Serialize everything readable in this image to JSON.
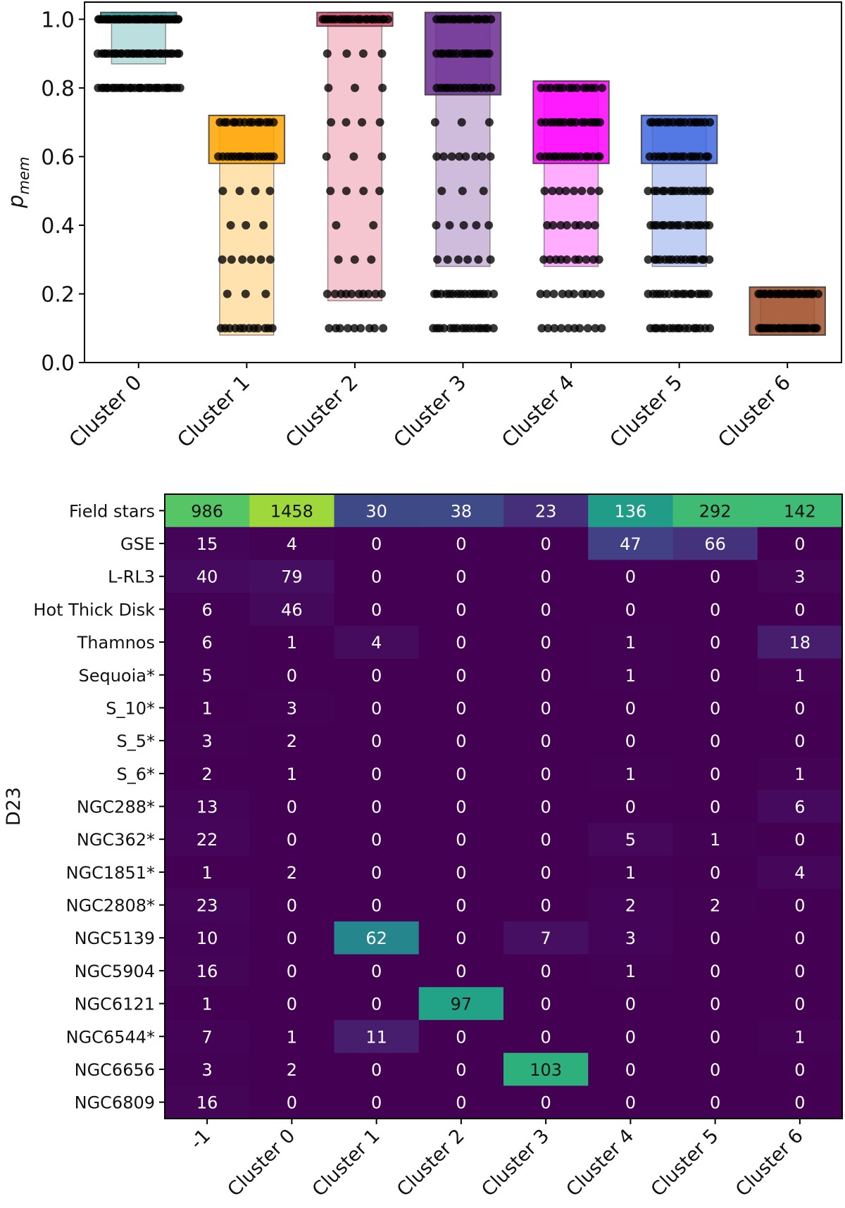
{
  "chart_data": [
    {
      "type": "box-strip",
      "ylabel": "p",
      "ylabel_sub": "mem",
      "ylim": [
        0.0,
        1.05
      ],
      "yticks": [
        0.0,
        0.2,
        0.4,
        0.6,
        0.8,
        1.0
      ],
      "ytick_labels": [
        "0.0",
        "0.2",
        "0.4",
        "0.6",
        "0.8",
        "1.0"
      ],
      "categories": [
        "Cluster 0",
        "Cluster 1",
        "Cluster 2",
        "Cluster 3",
        "Cluster 4",
        "Cluster 5",
        "Cluster 6"
      ],
      "boxes": [
        {
          "name": "Cluster 0",
          "color": "#2a9d9a",
          "q1": 0.99,
          "q3": 1.02,
          "whisker_low": 0.87,
          "whisker_high": 1.02,
          "levels": [
            {
              "y": 1.0,
              "n": 40,
              "spread": 0.75
            },
            {
              "y": 0.9,
              "n": 30,
              "spread": 0.75
            },
            {
              "y": 0.8,
              "n": 30,
              "spread": 0.75
            }
          ]
        },
        {
          "name": "Cluster 1",
          "color": "#ffa500",
          "q1": 0.58,
          "q3": 0.72,
          "whisker_low": 0.08,
          "whisker_high": 0.72,
          "levels": [
            {
              "y": 0.7,
              "n": 14,
              "spread": 0.5
            },
            {
              "y": 0.6,
              "n": 16,
              "spread": 0.5
            },
            {
              "y": 0.5,
              "n": 4,
              "spread": 0.45
            },
            {
              "y": 0.4,
              "n": 3,
              "spread": 0.3
            },
            {
              "y": 0.3,
              "n": 6,
              "spread": 0.45
            },
            {
              "y": 0.2,
              "n": 3,
              "spread": 0.35
            },
            {
              "y": 0.1,
              "n": 12,
              "spread": 0.5
            }
          ]
        },
        {
          "name": "Cluster 2",
          "color": "#e04e6e",
          "q1": 0.98,
          "q3": 1.02,
          "whisker_low": 0.18,
          "whisker_high": 1.02,
          "levels": [
            {
              "y": 1.0,
              "n": 24,
              "spread": 0.6
            },
            {
              "y": 0.9,
              "n": 4,
              "spread": 0.5
            },
            {
              "y": 0.8,
              "n": 3,
              "spread": 0.5
            },
            {
              "y": 0.7,
              "n": 4,
              "spread": 0.45
            },
            {
              "y": 0.6,
              "n": 3,
              "spread": 0.5
            },
            {
              "y": 0.5,
              "n": 4,
              "spread": 0.45
            },
            {
              "y": 0.4,
              "n": 2,
              "spread": 0.35
            },
            {
              "y": 0.3,
              "n": 3,
              "spread": 0.3
            },
            {
              "y": 0.2,
              "n": 10,
              "spread": 0.5
            },
            {
              "y": 0.1,
              "n": 9,
              "spread": 0.5
            }
          ]
        },
        {
          "name": "Cluster 3",
          "color": "#6a2c91",
          "q1": 0.78,
          "q3": 1.02,
          "whisker_low": 0.28,
          "whisker_high": 1.02,
          "levels": [
            {
              "y": 1.0,
              "n": 18,
              "spread": 0.5
            },
            {
              "y": 0.9,
              "n": 16,
              "spread": 0.5
            },
            {
              "y": 0.8,
              "n": 14,
              "spread": 0.5
            },
            {
              "y": 0.7,
              "n": 3,
              "spread": 0.5
            },
            {
              "y": 0.6,
              "n": 8,
              "spread": 0.5
            },
            {
              "y": 0.5,
              "n": 3,
              "spread": 0.4
            },
            {
              "y": 0.4,
              "n": 5,
              "spread": 0.5
            },
            {
              "y": 0.3,
              "n": 6,
              "spread": 0.5
            },
            {
              "y": 0.2,
              "n": 16,
              "spread": 0.55
            },
            {
              "y": 0.1,
              "n": 16,
              "spread": 0.55
            }
          ]
        },
        {
          "name": "Cluster 4",
          "color": "#ff00ff",
          "q1": 0.58,
          "q3": 0.82,
          "whisker_low": 0.28,
          "whisker_high": 0.82,
          "levels": [
            {
              "y": 0.8,
              "n": 14,
              "spread": 0.55
            },
            {
              "y": 0.7,
              "n": 16,
              "spread": 0.55
            },
            {
              "y": 0.6,
              "n": 16,
              "spread": 0.55
            },
            {
              "y": 0.5,
              "n": 8,
              "spread": 0.5
            },
            {
              "y": 0.4,
              "n": 8,
              "spread": 0.45
            },
            {
              "y": 0.3,
              "n": 10,
              "spread": 0.5
            },
            {
              "y": 0.2,
              "n": 10,
              "spread": 0.55
            },
            {
              "y": 0.1,
              "n": 10,
              "spread": 0.55
            }
          ]
        },
        {
          "name": "Cluster 5",
          "color": "#4169e1",
          "q1": 0.58,
          "q3": 0.72,
          "whisker_low": 0.28,
          "whisker_high": 0.72,
          "levels": [
            {
              "y": 0.7,
              "n": 16,
              "spread": 0.55
            },
            {
              "y": 0.6,
              "n": 16,
              "spread": 0.55
            },
            {
              "y": 0.5,
              "n": 16,
              "spread": 0.55
            },
            {
              "y": 0.4,
              "n": 16,
              "spread": 0.55
            },
            {
              "y": 0.3,
              "n": 16,
              "spread": 0.55
            },
            {
              "y": 0.2,
              "n": 16,
              "spread": 0.55
            },
            {
              "y": 0.1,
              "n": 16,
              "spread": 0.55
            }
          ]
        },
        {
          "name": "Cluster 6",
          "color": "#a0522d",
          "q1": 0.08,
          "q3": 0.22,
          "whisker_low": 0.08,
          "whisker_high": 0.22,
          "levels": [
            {
              "y": 0.2,
              "n": 22,
              "spread": 0.55
            },
            {
              "y": 0.1,
              "n": 22,
              "spread": 0.55
            }
          ]
        }
      ]
    },
    {
      "type": "heatmap",
      "ylabel": "D23",
      "colormap": "viridis",
      "x_categories": [
        "-1",
        "Cluster 0",
        "Cluster 1",
        "Cluster 2",
        "Cluster 3",
        "Cluster 4",
        "Cluster 5",
        "Cluster 6"
      ],
      "y_categories": [
        "Field stars",
        "GSE",
        "L-RL3",
        "Hot Thick Disk",
        "Thamnos",
        "Sequoia*",
        "S_10*",
        "S_5*",
        "S_6*",
        "NGC288*",
        "NGC362*",
        "NGC1851*",
        "NGC2808*",
        "NGC5139",
        "NGC5904",
        "NGC6121",
        "NGC6544*",
        "NGC6656",
        "NGC6809"
      ],
      "values": [
        [
          986,
          1458,
          30,
          38,
          23,
          136,
          292,
          142
        ],
        [
          15,
          4,
          0,
          0,
          0,
          47,
          66,
          0
        ],
        [
          40,
          79,
          0,
          0,
          0,
          0,
          0,
          3
        ],
        [
          6,
          46,
          0,
          0,
          0,
          0,
          0,
          0
        ],
        [
          6,
          1,
          4,
          0,
          0,
          1,
          0,
          18
        ],
        [
          5,
          0,
          0,
          0,
          0,
          1,
          0,
          1
        ],
        [
          1,
          3,
          0,
          0,
          0,
          0,
          0,
          0
        ],
        [
          3,
          2,
          0,
          0,
          0,
          0,
          0,
          0
        ],
        [
          2,
          1,
          0,
          0,
          0,
          1,
          0,
          1
        ],
        [
          13,
          0,
          0,
          0,
          0,
          0,
          0,
          6
        ],
        [
          22,
          0,
          0,
          0,
          0,
          5,
          1,
          0
        ],
        [
          1,
          2,
          0,
          0,
          0,
          1,
          0,
          4
        ],
        [
          23,
          0,
          0,
          0,
          0,
          2,
          2,
          0
        ],
        [
          10,
          0,
          62,
          0,
          7,
          3,
          0,
          0
        ],
        [
          16,
          0,
          0,
          0,
          0,
          1,
          0,
          0
        ],
        [
          1,
          0,
          0,
          97,
          0,
          0,
          0,
          0
        ],
        [
          7,
          1,
          11,
          0,
          0,
          0,
          0,
          1
        ],
        [
          3,
          2,
          0,
          0,
          103,
          0,
          0,
          0
        ],
        [
          16,
          0,
          0,
          0,
          0,
          0,
          0,
          0
        ]
      ],
      "color_norm": "per-column fraction"
    }
  ]
}
